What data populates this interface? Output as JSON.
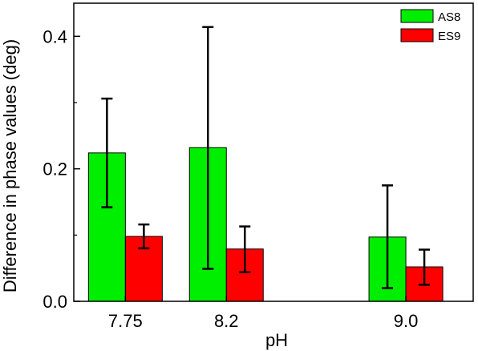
{
  "chart_data": {
    "type": "bar",
    "xlabel": "pH",
    "ylabel": "Difference in phase values (deg)",
    "categories": [
      "7.75",
      "8.2",
      "9.0"
    ],
    "x": [
      7.75,
      8.2,
      9.0
    ],
    "ylim": [
      0,
      0.45
    ],
    "yticks": [
      "0.0",
      "0.2",
      "0.4"
    ],
    "ytick_values": [
      0.0,
      0.2,
      0.4
    ],
    "series": [
      {
        "name": "AS8",
        "color": "#00ee00",
        "values": [
          0.224,
          0.232,
          0.097
        ],
        "err_low": [
          0.142,
          0.049,
          0.02
        ],
        "err_high": [
          0.306,
          0.414,
          0.175
        ]
      },
      {
        "name": "ES9",
        "color": "#ff0000",
        "values": [
          0.098,
          0.079,
          0.052
        ],
        "err_low": [
          0.08,
          0.044,
          0.025
        ],
        "err_high": [
          0.116,
          0.113,
          0.078
        ]
      }
    ],
    "legend_position": "top-right",
    "grid": false
  }
}
